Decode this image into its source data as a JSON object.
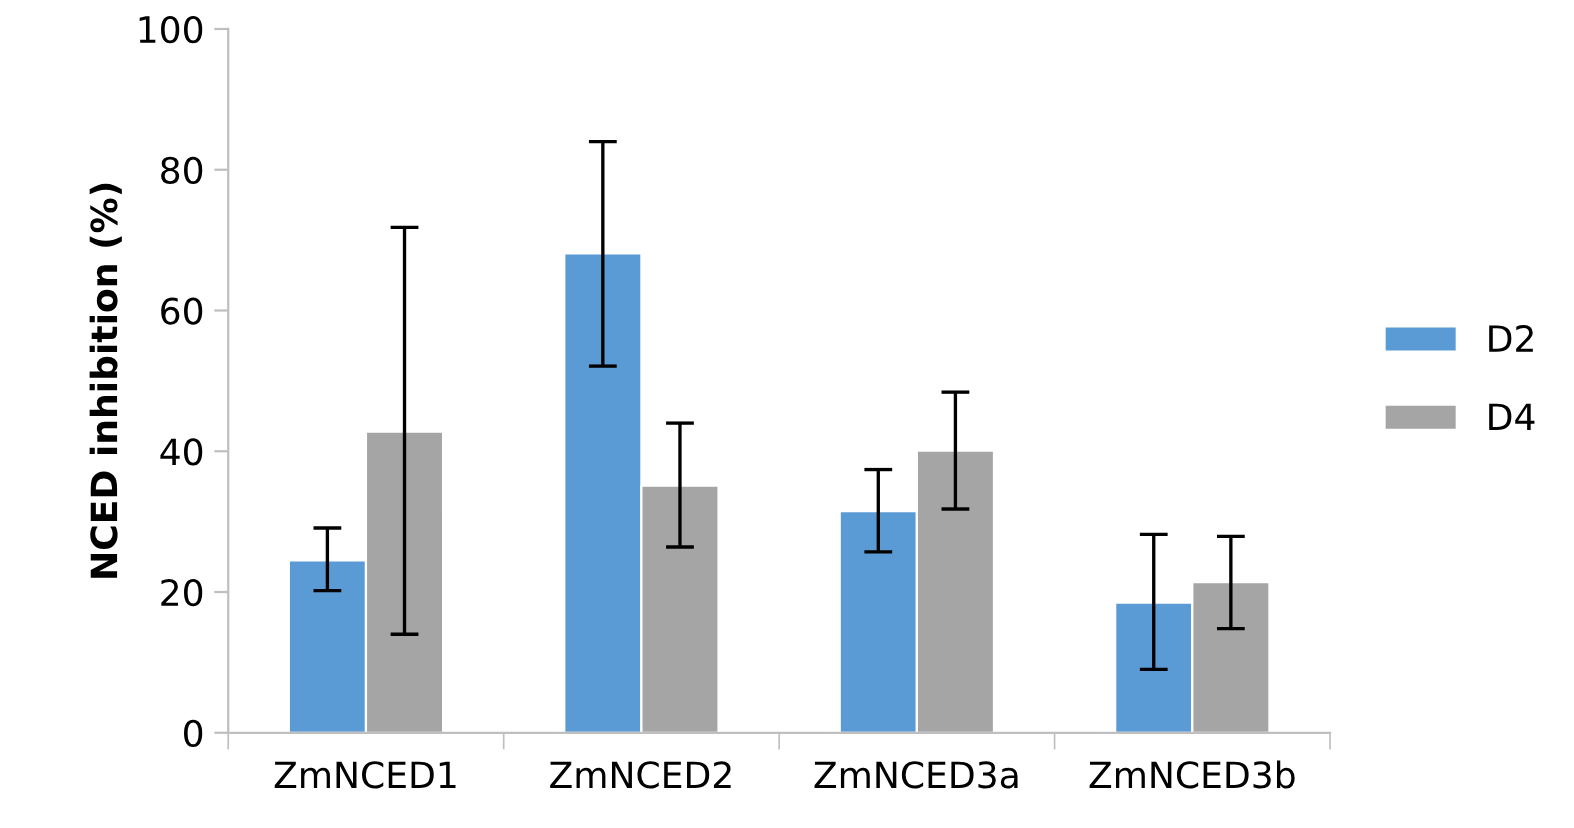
{
  "chart_data": {
    "type": "bar",
    "ylabel": "NCED inhibition (%)",
    "categories": [
      "ZmNCED1",
      "ZmNCED2",
      "ZmNCED3a",
      "ZmNCED3b"
    ],
    "series": [
      {
        "name": "D2",
        "color": "#5b9bd5",
        "values": [
          24.5,
          68.1,
          31.5,
          18.5
        ],
        "errors": [
          [
            20.2,
            29.1
          ],
          [
            52.1,
            84.0
          ],
          [
            25.7,
            37.4
          ],
          [
            9.0,
            28.2
          ]
        ]
      },
      {
        "name": "D4",
        "color": "#a5a5a5",
        "values": [
          42.8,
          35.1,
          40.1,
          21.4
        ],
        "errors": [
          [
            14.0,
            71.8
          ],
          [
            26.4,
            44.0
          ],
          [
            31.8,
            48.4
          ],
          [
            14.8,
            27.9
          ]
        ]
      }
    ],
    "ylim": [
      0,
      100
    ],
    "yticks": [
      0,
      20,
      40,
      60,
      80,
      100
    ],
    "grid": false,
    "legend": "right"
  }
}
